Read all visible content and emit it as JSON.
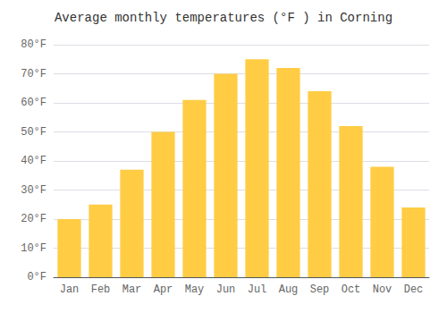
{
  "chart_data": {
    "type": "bar",
    "title": "Average monthly temperatures (°F ) in Corning",
    "categories": [
      "Jan",
      "Feb",
      "Mar",
      "Apr",
      "May",
      "Jun",
      "Jul",
      "Aug",
      "Sep",
      "Oct",
      "Nov",
      "Dec"
    ],
    "values": [
      20,
      25,
      37,
      50,
      61,
      70,
      75,
      72,
      64,
      52,
      38,
      24
    ],
    "color": "#FFCC44",
    "ylim": [
      0,
      80
    ],
    "yticks": [
      {
        "value": 0,
        "label": "0°F"
      },
      {
        "value": 10,
        "label": "10°F"
      },
      {
        "value": 20,
        "label": "20°F"
      },
      {
        "value": 30,
        "label": "30°F"
      },
      {
        "value": 40,
        "label": "40°F"
      },
      {
        "value": 50,
        "label": "50°F"
      },
      {
        "value": 60,
        "label": "60°F"
      },
      {
        "value": 70,
        "label": "70°F"
      },
      {
        "value": 80,
        "label": "80°F"
      }
    ],
    "grid": true
  }
}
